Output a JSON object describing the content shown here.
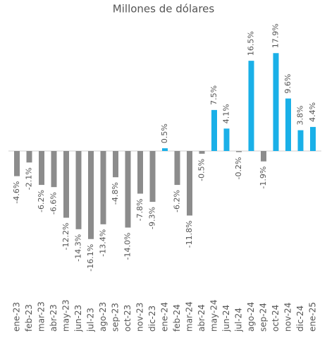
{
  "chart_data": {
    "type": "bar",
    "title": "Millones de dólares",
    "categories": [
      "ene-23",
      "feb-23",
      "mar-23",
      "abr-23",
      "may-23",
      "jun-23",
      "jul-23",
      "ago-23",
      "sep-23",
      "oct-23",
      "nov-23",
      "dic-23",
      "ene-24",
      "feb-24",
      "mar-24",
      "abr-24",
      "may-24",
      "jun-24",
      "jul-24",
      "ago-24",
      "sep-24",
      "oct-24",
      "nov-24",
      "dic-24",
      "ene-25"
    ],
    "values": [
      -4.6,
      -2.1,
      -6.2,
      -6.6,
      -12.2,
      -14.3,
      -16.1,
      -13.4,
      -4.8,
      -14.0,
      -7.8,
      -9.3,
      0.5,
      -6.2,
      -11.8,
      -0.5,
      7.5,
      4.1,
      -0.2,
      16.5,
      -1.9,
      17.9,
      9.6,
      3.8,
      4.4
    ],
    "value_labels": [
      "-4.6%",
      "-2.1%",
      "-6.2%",
      "-6.6%",
      "-12.2%",
      "-14.3%",
      "-16.1%",
      "-13.4%",
      "-4.8%",
      "-14.0%",
      "-7.8%",
      "-9.3%",
      "0.5%",
      "-6.2%",
      "-11.8%",
      "-0.5%",
      "7.5%",
      "4.1%",
      "-0.2%",
      "16.5%",
      "-1.9%",
      "17.9%",
      "9.6%",
      "3.8%",
      "4.4%"
    ],
    "colors": [
      "#8c8c8c",
      "#8c8c8c",
      "#8c8c8c",
      "#8c8c8c",
      "#8c8c8c",
      "#8c8c8c",
      "#8c8c8c",
      "#8c8c8c",
      "#8c8c8c",
      "#8c8c8c",
      "#8c8c8c",
      "#8c8c8c",
      "#1ab0e8",
      "#8c8c8c",
      "#8c8c8c",
      "#8c8c8c",
      "#1ab0e8",
      "#1ab0e8",
      "#8c8c8c",
      "#1ab0e8",
      "#8c8c8c",
      "#1ab0e8",
      "#1ab0e8",
      "#1ab0e8",
      "#1ab0e8"
    ]
  }
}
